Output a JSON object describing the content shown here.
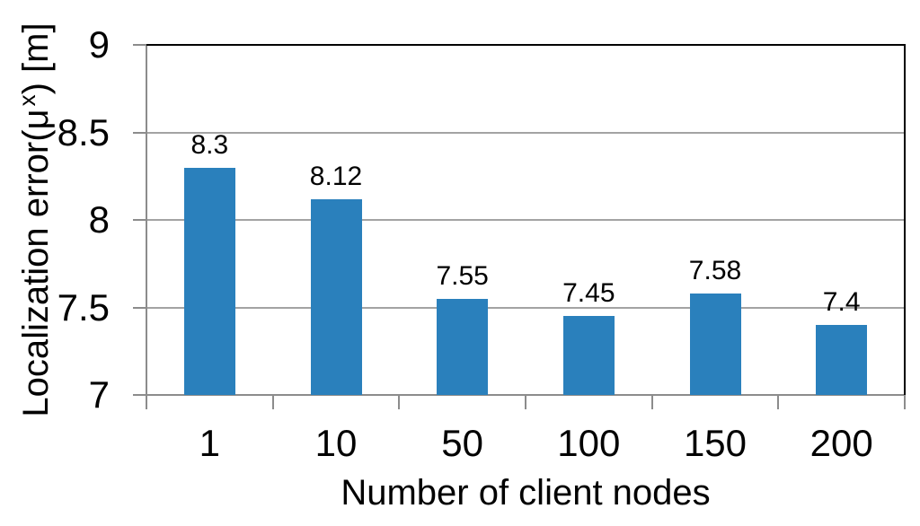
{
  "figure": {
    "background": "#ffffff",
    "bar_color": "#2A80BC",
    "grid_color": "#A3A3A3",
    "axis_color": "#8C8C8C",
    "border_color": "#000000",
    "text_color": "#000000"
  },
  "chart_data": {
    "type": "bar",
    "title": "",
    "xlabel": "Number of client nodes",
    "ylabel": "Localization error(μˣ) [m]",
    "ylabel_parts": {
      "prefix": "Localization error(μ",
      "superscript": "x",
      "suffix": ") [m]"
    },
    "categories": [
      "1",
      "10",
      "50",
      "100",
      "150",
      "200"
    ],
    "values": [
      8.3,
      8.12,
      7.55,
      7.45,
      7.58,
      7.4
    ],
    "value_labels": [
      "8.3",
      "8.12",
      "7.55",
      "7.45",
      "7.58",
      "7.4"
    ],
    "ylim": [
      7,
      9
    ],
    "yticks": [
      7,
      7.5,
      8,
      8.5,
      9
    ],
    "ytick_labels": [
      "7",
      "7.5",
      "8",
      "8.5",
      "9"
    ],
    "grid": true,
    "legend": false
  }
}
